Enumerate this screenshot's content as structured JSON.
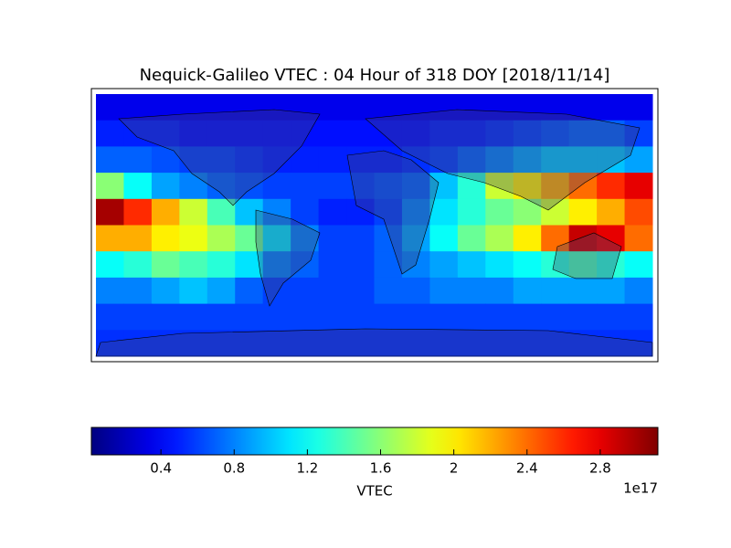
{
  "chart_data": {
    "type": "heatmap",
    "title": "Nequick-Galileo VTEC : 04 Hour of 318 DOY [2018/11/14]",
    "colorbar_label": "VTEC",
    "colorbar_offset": "1e17",
    "colormap": "jet",
    "clim": [
      0.02,
      3.115
    ],
    "colorbar_ticks": [
      0.4,
      0.8,
      1.2,
      1.6,
      2.0,
      2.4,
      2.8
    ],
    "values": [
      [
        0.35,
        0.35,
        0.35,
        0.35,
        0.35,
        0.35,
        0.35,
        0.35,
        0.35,
        0.35,
        0.35,
        0.35,
        0.35,
        0.35,
        0.35,
        0.35,
        0.35,
        0.35,
        0.35,
        0.35
      ],
      [
        0.5,
        0.5,
        0.5,
        0.45,
        0.45,
        0.45,
        0.45,
        0.45,
        0.45,
        0.45,
        0.45,
        0.45,
        0.5,
        0.5,
        0.55,
        0.6,
        0.65,
        0.7,
        0.7,
        0.6
      ],
      [
        0.7,
        0.7,
        0.65,
        0.6,
        0.6,
        0.55,
        0.5,
        0.5,
        0.5,
        0.5,
        0.5,
        0.55,
        0.6,
        0.7,
        0.8,
        0.9,
        1.0,
        1.0,
        1.0,
        0.9
      ],
      [
        1.6,
        1.2,
        0.9,
        0.8,
        0.7,
        0.65,
        0.6,
        0.6,
        0.6,
        0.6,
        0.65,
        0.7,
        1.0,
        1.3,
        1.8,
        2.0,
        2.2,
        2.4,
        2.6,
        2.8
      ],
      [
        3.0,
        2.6,
        2.2,
        1.8,
        1.4,
        1.0,
        0.8,
        0.6,
        0.5,
        0.5,
        0.6,
        0.8,
        1.1,
        1.3,
        1.5,
        1.6,
        1.8,
        2.0,
        2.2,
        2.5
      ],
      [
        2.2,
        2.2,
        2.0,
        1.9,
        1.7,
        1.5,
        1.1,
        0.8,
        0.6,
        0.6,
        0.7,
        0.9,
        1.2,
        1.5,
        1.7,
        2.0,
        2.4,
        2.9,
        2.8,
        2.4
      ],
      [
        1.2,
        1.3,
        1.5,
        1.4,
        1.3,
        1.1,
        0.8,
        0.7,
        0.6,
        0.6,
        0.7,
        0.8,
        0.9,
        1.0,
        1.1,
        1.2,
        1.3,
        1.4,
        1.3,
        1.2
      ],
      [
        0.8,
        0.8,
        0.9,
        1.0,
        0.9,
        0.7,
        0.6,
        0.6,
        0.6,
        0.6,
        0.7,
        0.7,
        0.8,
        0.8,
        0.8,
        0.9,
        0.9,
        0.9,
        0.9,
        0.8
      ],
      [
        0.6,
        0.6,
        0.6,
        0.6,
        0.6,
        0.6,
        0.6,
        0.6,
        0.6,
        0.6,
        0.6,
        0.6,
        0.6,
        0.6,
        0.6,
        0.6,
        0.6,
        0.6,
        0.6,
        0.6
      ],
      [
        0.55,
        0.55,
        0.55,
        0.55,
        0.55,
        0.55,
        0.55,
        0.55,
        0.55,
        0.55,
        0.55,
        0.55,
        0.55,
        0.55,
        0.55,
        0.55,
        0.55,
        0.55,
        0.55,
        0.55
      ]
    ]
  }
}
